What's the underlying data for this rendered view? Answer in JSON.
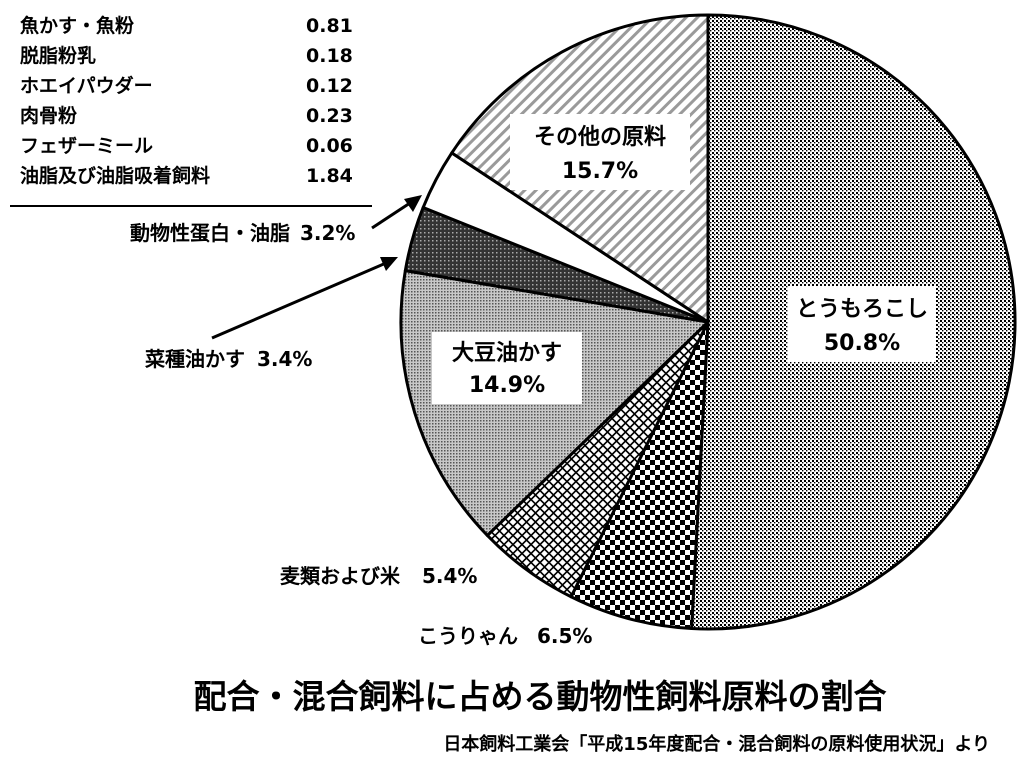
{
  "chart_data": {
    "type": "pie",
    "title": "配合・混合飼料に占める動物性飼料原料の割合",
    "source": "日本飼料工業会「平成15年度配合・混合飼料の原料使用状況」より",
    "slices": [
      {
        "label": "とうもろこし",
        "value": 50.8,
        "value_text": "50.8%",
        "pattern": "dense-dots"
      },
      {
        "label": "こうりゃん",
        "value": 6.5,
        "value_text": "6.5%",
        "pattern": "checker"
      },
      {
        "label": "麦類および米",
        "value": 5.4,
        "value_text": "5.4%",
        "pattern": "diamond"
      },
      {
        "label": "大豆油かす",
        "value": 14.9,
        "value_text": "14.9%",
        "pattern": "fine-gray"
      },
      {
        "label": "菜種油かす",
        "value": 3.4,
        "value_text": "3.4%",
        "pattern": "dark"
      },
      {
        "label": "動物性蛋白・油脂",
        "value": 3.2,
        "value_text": "3.2%",
        "pattern": "white"
      },
      {
        "label": "その他の原料",
        "value": 15.7,
        "value_text": "15.7%",
        "pattern": "hatch"
      }
    ],
    "breakdown": {
      "rows": [
        {
          "label": "魚かす・魚粉",
          "value": "0.81"
        },
        {
          "label": "脱脂粉乳",
          "value": "0.18"
        },
        {
          "label": "ホエイパウダー",
          "value": "0.12"
        },
        {
          "label": "肉骨粉",
          "value": "0.23"
        },
        {
          "label": "フェザーミール",
          "value": "0.06"
        },
        {
          "label": "油脂及び油脂吸着飼料",
          "value": "1.84"
        }
      ]
    },
    "colors": {
      "stroke": "#000000",
      "background": "#ffffff"
    }
  }
}
